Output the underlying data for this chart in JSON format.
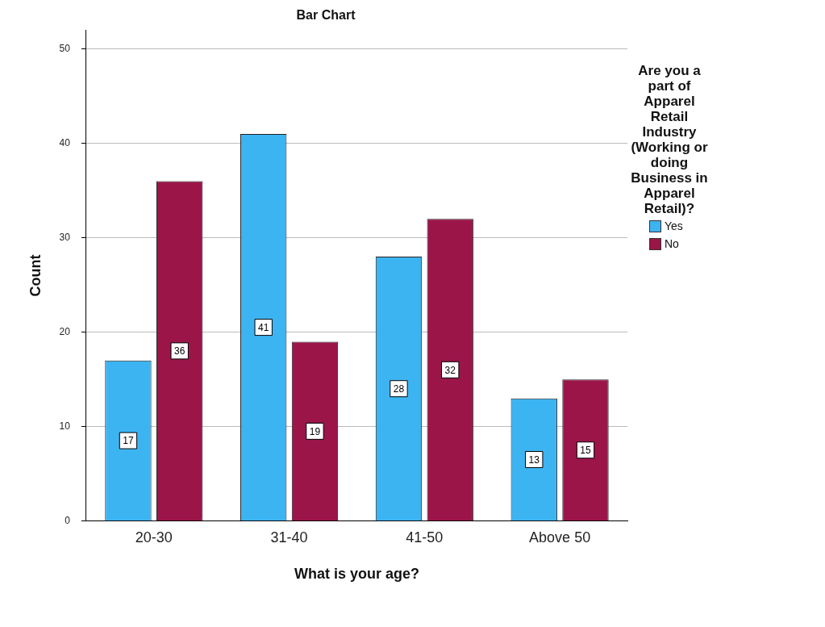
{
  "chart_data": {
    "type": "bar",
    "title": "Bar Chart",
    "xlabel": "What is your age?",
    "ylabel": "Count",
    "legend_title": "Are you a part of Apparel Retail Industry (Working or doing Business in Apparel Retail)?",
    "categories": [
      "20-30",
      "31-40",
      "41-50",
      "Above 50"
    ],
    "series": [
      {
        "name": "Yes",
        "color": "#3db4f2",
        "values": [
          17,
          41,
          28,
          13
        ]
      },
      {
        "name": "No",
        "color": "#9b1549",
        "values": [
          36,
          19,
          32,
          15
        ]
      }
    ],
    "ylim": [
      0,
      52
    ],
    "yticks": [
      0,
      10,
      20,
      30,
      40,
      50
    ],
    "grid": "y",
    "legend": "right",
    "data_labels": true
  }
}
